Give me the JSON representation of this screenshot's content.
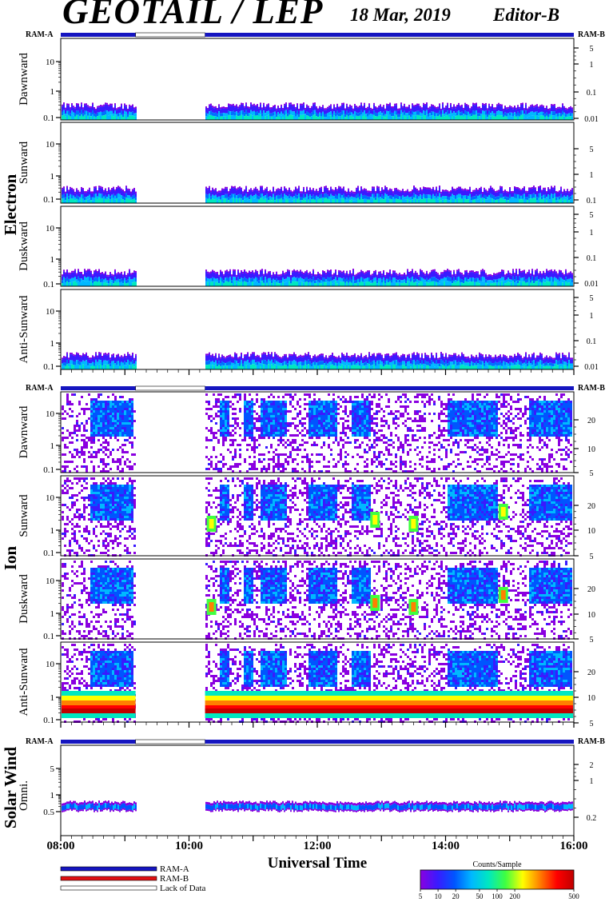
{
  "header": {
    "title": "GEOTAIL / LEP",
    "date": "18 Mar, 2019",
    "editor": "Editor-B"
  },
  "ram_labels": {
    "left": "RAM-A",
    "right": "RAM-B"
  },
  "groups": [
    {
      "label": "Electron"
    },
    {
      "label": "Ion"
    },
    {
      "label": "Solar Wind"
    }
  ],
  "panel_labels": {
    "electron": [
      "Dawnward",
      "Sunward",
      "Duskward",
      "Anti-Sunward"
    ],
    "ion": [
      "Dawnward",
      "Sunward",
      "Duskward",
      "Anti-Sunward"
    ],
    "solar_wind": [
      "Omni."
    ]
  },
  "left_ticks": {
    "electron": [
      "10",
      "1",
      "0.1"
    ],
    "ion": [
      "10",
      "1",
      "0.1"
    ],
    "solar_wind": [
      "5",
      "1",
      "0.5"
    ]
  },
  "right_ticks": {
    "electron": [
      "5",
      "1",
      "0.1",
      "0.01"
    ],
    "ion": [
      "20",
      "10",
      "5"
    ],
    "solar_wind": [
      "2",
      "1",
      "0.2"
    ]
  },
  "xaxis": {
    "label": "Universal Time",
    "ticks": [
      "08:00",
      "10:00",
      "12:00",
      "14:00",
      "16:00"
    ]
  },
  "legend": {
    "items": [
      "RAM-A",
      "RAM-B",
      "Lack of Data"
    ],
    "colors": {
      "ram_a": "#1515c0",
      "ram_b": "#e01010",
      "lack": "#ffffff"
    }
  },
  "colorbar": {
    "title": "Counts/Sample",
    "ticks": [
      "5",
      "10",
      "20",
      "50",
      "100",
      "200",
      "500"
    ],
    "colors": [
      "#8a00e0",
      "#3a1aff",
      "#0055ff",
      "#00b8ff",
      "#00e8c0",
      "#40ff40",
      "#ffff00",
      "#ff8000",
      "#ff0000",
      "#c00000"
    ]
  },
  "chart_data": {
    "type": "heatmap",
    "x_range_ut": [
      "08:00",
      "16:00"
    ],
    "data_gap_ut": [
      "09:10",
      "10:15"
    ],
    "ram_mode": "RAM-A for all available data",
    "y_scale": "log"
  }
}
